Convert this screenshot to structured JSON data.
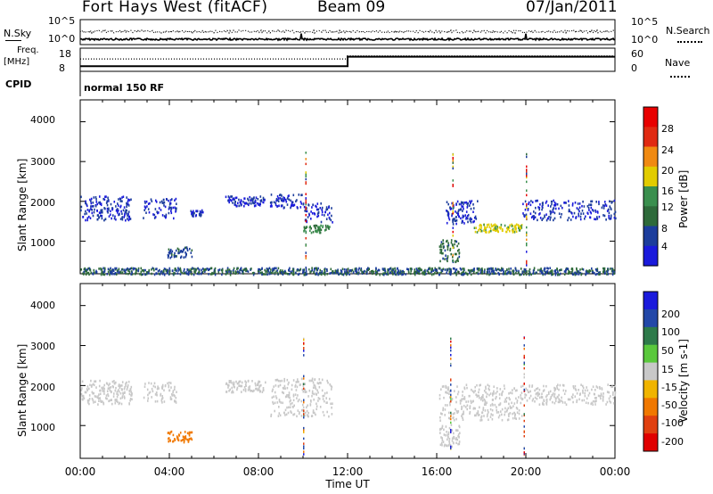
{
  "header": {
    "station": "Fort Hays West (fitACF)",
    "beam": "Beam 09",
    "date": "07/Jan/2011"
  },
  "top_panels": {
    "nsky_label": "N.Sky",
    "nsearch_label": "N.Search",
    "noise_ticks_left": [
      "10^5",
      "10^0"
    ],
    "noise_ticks_right": [
      "10^5",
      "10^0"
    ],
    "freq_label_line1": "Freq.",
    "freq_label_line2": "[MHz]",
    "freq_ticks": [
      "18",
      "8"
    ],
    "nave_ticks": [
      "60",
      "0"
    ],
    "nave_label": "Nave",
    "cpid_label": "CPID",
    "cpid_value": "normal 150 RF"
  },
  "axes": {
    "ylabel": "Slant Range [km]",
    "yticks": [
      "4000",
      "3000",
      "2000",
      "1000"
    ],
    "xticks": [
      "00:00",
      "04:00",
      "08:00",
      "12:00",
      "16:00",
      "20:00",
      "00:00"
    ],
    "xlabel": "Time UT"
  },
  "colorbars": {
    "power": {
      "label": "Power [dB]",
      "ticks": [
        "28",
        "24",
        "20",
        "16",
        "12",
        "8",
        "4"
      ],
      "colors": [
        "#1a1adc",
        "#1c3d9c",
        "#2e6a3a",
        "#3a8f4e",
        "#e2cc00",
        "#f08a12",
        "#e02a12",
        "#e80000"
      ]
    },
    "velocity": {
      "label": "Velocity [m s-1]",
      "ticks": [
        "200",
        "100",
        "50",
        "15",
        "-15",
        "-50",
        "-100",
        "-200"
      ],
      "colors": [
        "#1a1adc",
        "#2348a8",
        "#2e7a4a",
        "#5ac83c",
        "#c8c8c8",
        "#f0b400",
        "#f07800",
        "#e04010",
        "#e00000"
      ]
    }
  },
  "chart_data": [
    {
      "type": "line",
      "name": "noise",
      "series": [
        {
          "name": "N.Sky",
          "style": "solid",
          "level": "low, near 10^0"
        },
        {
          "name": "N.Search",
          "style": "dotted",
          "level": "mid, between 10^0 and 10^5"
        }
      ],
      "x_range_hours": [
        0,
        24
      ]
    },
    {
      "type": "line",
      "name": "frequency-nave",
      "series": [
        {
          "name": "Freq.",
          "style": "solid",
          "x": [
            0,
            12,
            12,
            24
          ],
          "y": [
            10.2,
            10.2,
            14.3,
            14.3
          ],
          "unit": "MHz"
        },
        {
          "name": "Nave",
          "style": "dotted",
          "x": [
            0,
            12,
            12,
            24
          ],
          "y": [
            32,
            32,
            40,
            40
          ]
        }
      ],
      "ylim_left": [
        8,
        18
      ],
      "ylim_right": [
        0,
        60
      ]
    },
    {
      "type": "scatter",
      "name": "power",
      "xlabel": "Time UT",
      "ylabel": "Slant Range [km]",
      "xlim_hours": [
        0,
        24
      ],
      "ylim_km": [
        180,
        4550
      ],
      "clusters": [
        {
          "t": [
            0.0,
            2.3
          ],
          "r": [
            1550,
            2150
          ],
          "value": 6
        },
        {
          "t": [
            2.8,
            4.3
          ],
          "r": [
            1600,
            2100
          ],
          "value": 6
        },
        {
          "t": [
            4.9,
            5.5
          ],
          "r": [
            1650,
            1800
          ],
          "value": 6
        },
        {
          "t": [
            3.9,
            5.0
          ],
          "r": [
            600,
            880
          ],
          "value": 9
        },
        {
          "t": [
            6.5,
            8.3
          ],
          "r": [
            1900,
            2150
          ],
          "value": 6
        },
        {
          "t": [
            8.5,
            10.0
          ],
          "r": [
            1850,
            2200
          ],
          "value": 6
        },
        {
          "t": [
            10.0,
            11.3
          ],
          "r": [
            1500,
            2000
          ],
          "value": 6
        },
        {
          "t": [
            10.0,
            11.2
          ],
          "r": [
            1230,
            1420
          ],
          "value": 14
        },
        {
          "t": [
            16.4,
            17.8
          ],
          "r": [
            1450,
            2050
          ],
          "value": 6
        },
        {
          "t": [
            17.6,
            19.8
          ],
          "r": [
            1250,
            1450
          ],
          "value": 19
        },
        {
          "t": [
            16.1,
            17.0
          ],
          "r": [
            500,
            1050
          ],
          "value": 11
        },
        {
          "t": [
            19.8,
            24.0
          ],
          "r": [
            1550,
            2050
          ],
          "value": 6
        },
        {
          "t": [
            0.0,
            24.0
          ],
          "r": [
            180,
            350
          ],
          "value": 10
        }
      ]
    },
    {
      "type": "scatter",
      "name": "velocity",
      "xlabel": "Time UT",
      "ylabel": "Slant Range [km]",
      "xlim_hours": [
        0,
        24
      ],
      "ylim_km": [
        180,
        4550
      ],
      "clusters": [
        {
          "t": [
            0.0,
            2.3
          ],
          "r": [
            1550,
            2150
          ],
          "value": 0
        },
        {
          "t": [
            2.8,
            4.3
          ],
          "r": [
            1600,
            2100
          ],
          "value": 0
        },
        {
          "t": [
            3.9,
            5.0
          ],
          "r": [
            600,
            880
          ],
          "value": -80
        },
        {
          "t": [
            6.5,
            8.3
          ],
          "r": [
            1850,
            2150
          ],
          "value": 0
        },
        {
          "t": [
            8.5,
            11.3
          ],
          "r": [
            1250,
            2200
          ],
          "value": 0
        },
        {
          "t": [
            16.1,
            19.8
          ],
          "r": [
            1150,
            2050
          ],
          "value": 0
        },
        {
          "t": [
            16.1,
            17.0
          ],
          "r": [
            500,
            1050
          ],
          "value": 0
        },
        {
          "t": [
            19.8,
            24.0
          ],
          "r": [
            1550,
            2050
          ],
          "value": 0
        }
      ]
    }
  ]
}
